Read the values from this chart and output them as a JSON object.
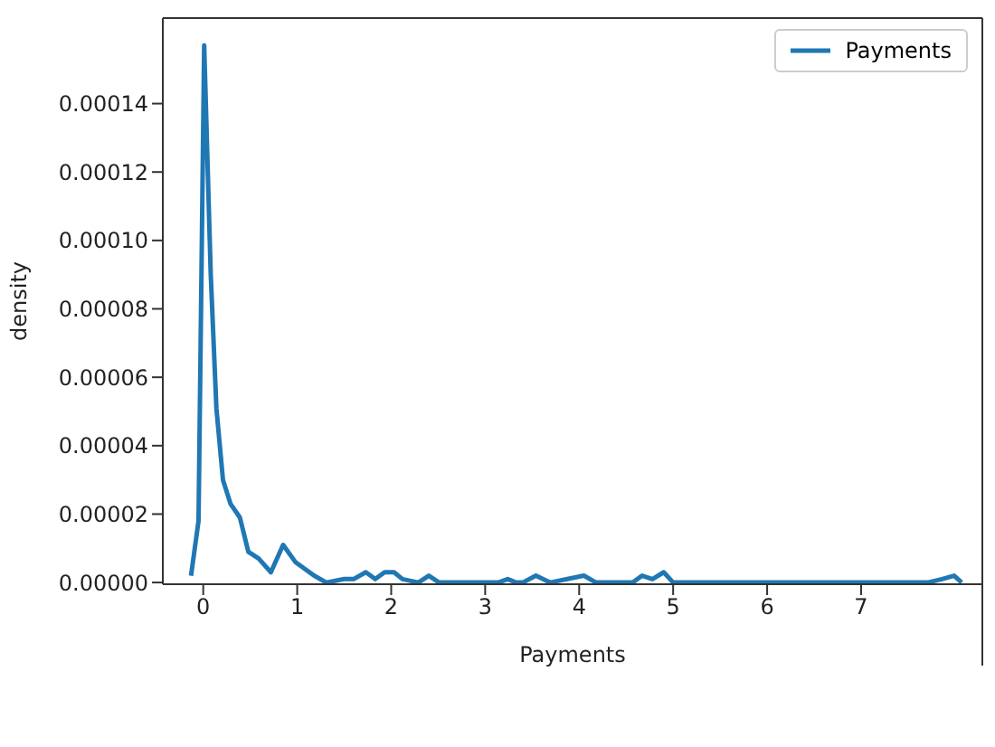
{
  "chart_data": {
    "type": "line",
    "xlabel": "Payments",
    "ylabel": "density",
    "x": [
      -0.13,
      -0.05,
      0.01,
      0.08,
      0.14,
      0.21,
      0.29,
      0.39,
      0.48,
      0.59,
      0.72,
      0.85,
      0.98,
      1.18,
      1.31,
      1.5,
      1.6,
      1.73,
      1.83,
      1.93,
      2.03,
      2.12,
      2.29,
      2.4,
      2.51,
      3.14,
      3.24,
      3.33,
      3.4,
      3.54,
      3.69,
      4.05,
      4.18,
      4.57,
      4.67,
      4.78,
      4.9,
      5.0,
      7.71,
      7.86,
      7.99,
      8.07
    ],
    "series": [
      {
        "name": "Payments",
        "color": "#1f77b4",
        "values": [
          2e-06,
          1.8e-05,
          0.000157,
          9e-05,
          5.1e-05,
          3e-05,
          2.3e-05,
          1.9e-05,
          9e-06,
          7e-06,
          3e-06,
          1.1e-05,
          6e-06,
          2e-06,
          0,
          1e-06,
          1e-06,
          3e-06,
          1e-06,
          3e-06,
          3e-06,
          1e-06,
          0,
          2e-06,
          0,
          0,
          1e-06,
          0,
          0,
          2e-06,
          0,
          2e-06,
          0,
          0,
          2e-06,
          1e-06,
          3e-06,
          0,
          0,
          1e-06,
          2e-06,
          0
        ]
      }
    ],
    "xlim": [
      -0.43,
      8.29
    ],
    "xticks": [
      0,
      1,
      2,
      3,
      4,
      5,
      6,
      7
    ],
    "ylim": [
      -5e-07,
      0.000165
    ],
    "yticks": [
      {
        "value": 0,
        "label": "0.00000"
      },
      {
        "value": 2e-05,
        "label": "0.00002"
      },
      {
        "value": 4e-05,
        "label": "0.00004"
      },
      {
        "value": 6e-05,
        "label": "0.00006"
      },
      {
        "value": 8e-05,
        "label": "0.00008"
      },
      {
        "value": 0.0001,
        "label": "0.00010"
      },
      {
        "value": 0.00012,
        "label": "0.00012"
      },
      {
        "value": 0.00014,
        "label": "0.00014"
      }
    ],
    "grid": false,
    "legend": "top right",
    "marker": "none",
    "line_style": "solid"
  }
}
